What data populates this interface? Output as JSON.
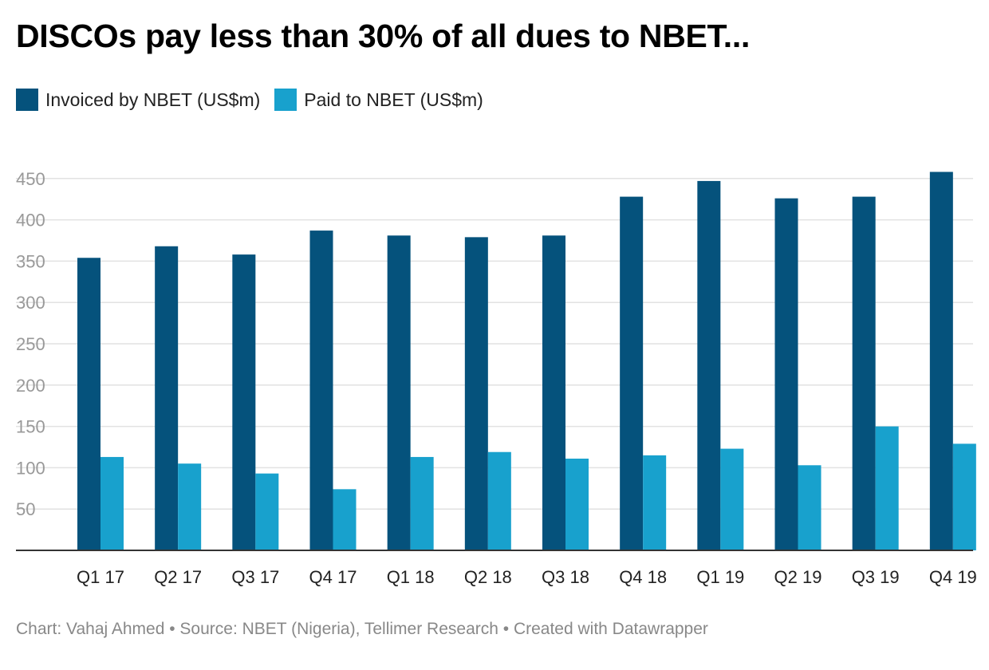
{
  "chart_data": {
    "type": "bar",
    "title": "DISCOs pay less than 30% of all dues to NBET...",
    "categories": [
      "Q1 17",
      "Q2 17",
      "Q3 17",
      "Q4 17",
      "Q1 18",
      "Q2 18",
      "Q3 18",
      "Q4 18",
      "Q1 19",
      "Q2 19",
      "Q3 19",
      "Q4 19"
    ],
    "series": [
      {
        "name": "Invoiced by NBET (US$m)",
        "color": "#05527c",
        "values": [
          354,
          368,
          358,
          387,
          381,
          379,
          381,
          428,
          447,
          426,
          428,
          458
        ]
      },
      {
        "name": "Paid to NBET (US$m)",
        "color": "#18a1cd",
        "values": [
          113,
          105,
          93,
          74,
          113,
          119,
          111,
          115,
          123,
          103,
          150,
          129
        ]
      }
    ],
    "y_ticks": [
      50,
      100,
      150,
      200,
      250,
      300,
      350,
      400,
      450
    ],
    "ylim": [
      0,
      465
    ],
    "grid": true,
    "legend_position": "top-left",
    "xlabel": "",
    "ylabel": ""
  },
  "footer": "Chart: Vahaj Ahmed • Source: NBET (Nigeria), Tellimer Research • Created with Datawrapper"
}
